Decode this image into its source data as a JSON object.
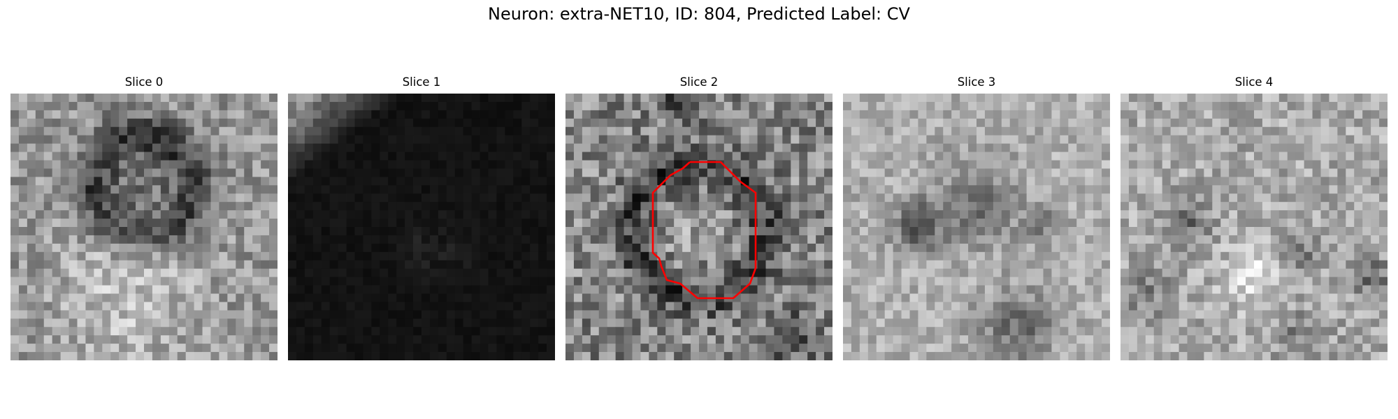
{
  "figure": {
    "title": "Neuron: extra-NET10, ID: 804, Predicted Label: CV"
  },
  "panels": [
    {
      "title": "Slice 0",
      "colormap": "gray",
      "overlay": false
    },
    {
      "title": "Slice 1",
      "colormap": "gray",
      "overlay": false
    },
    {
      "title": "Slice 2",
      "colormap": "gray",
      "overlay": true,
      "overlay_color": "#ff0000"
    },
    {
      "title": "Slice 3",
      "colormap": "gray",
      "overlay": false
    },
    {
      "title": "Slice 4",
      "colormap": "gray",
      "overlay": false
    }
  ]
}
